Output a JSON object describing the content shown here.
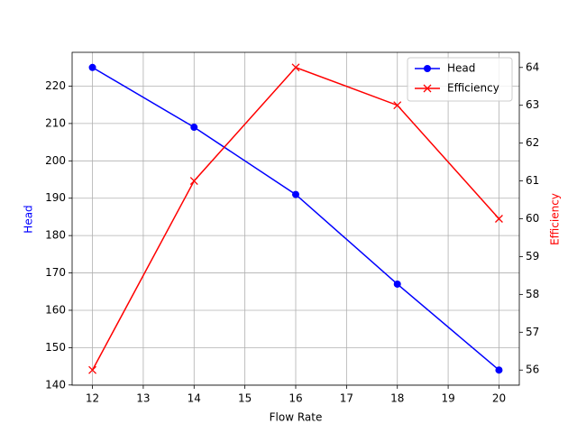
{
  "chart_data": {
    "type": "line",
    "xlabel": "Flow Rate",
    "ylabel": "Head",
    "y2label": "Efficiency",
    "x": [
      12,
      14,
      16,
      18,
      20
    ],
    "series": [
      {
        "name": "Head",
        "color": "#0000ff",
        "marker": "o",
        "values": [
          225,
          209,
          191,
          167,
          144
        ]
      },
      {
        "name": "Efficiency",
        "color": "#ff0000",
        "marker": "x",
        "axis": "y2",
        "values": [
          56,
          61,
          64,
          63,
          60
        ]
      }
    ],
    "xlim": [
      11.6,
      20.4
    ],
    "xticks": [
      12,
      13,
      14,
      15,
      16,
      17,
      18,
      19,
      20
    ],
    "ylim": [
      139.95,
      229.05
    ],
    "yticks": [
      140,
      150,
      160,
      170,
      180,
      190,
      200,
      210,
      220
    ],
    "y2lim": [
      55.6,
      64.4
    ],
    "y2ticks": [
      56,
      57,
      58,
      59,
      60,
      61,
      62,
      63,
      64
    ],
    "grid": true,
    "legend": "upper right"
  }
}
